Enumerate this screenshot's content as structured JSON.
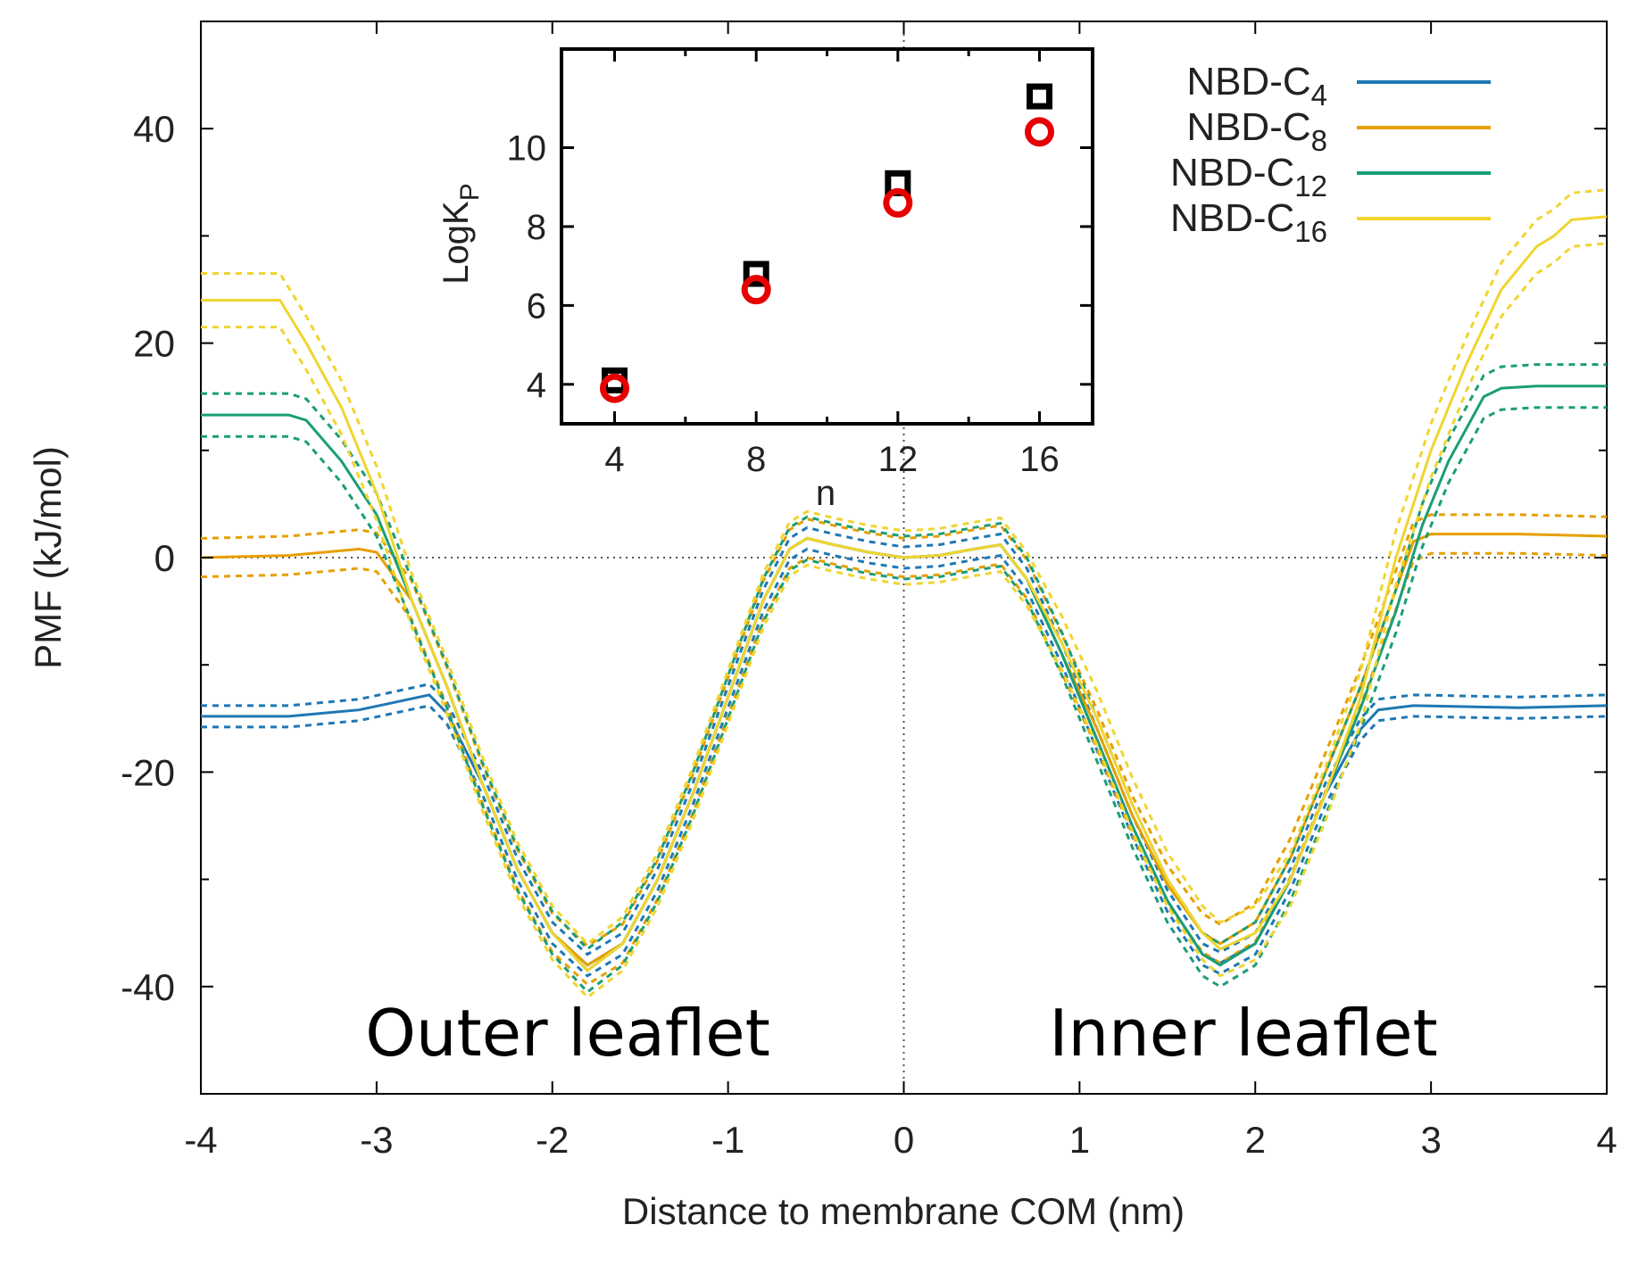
{
  "chart_data": [
    {
      "type": "line",
      "xlabel": "Distance to membrane COM (nm)",
      "ylabel": "PMF (kJ/mol)",
      "xlim": [
        -4,
        4
      ],
      "ylim": [
        -50,
        50
      ],
      "xticks": [
        -4,
        -3,
        -2,
        -1,
        0,
        1,
        2,
        3,
        4
      ],
      "yticks": [
        -40,
        -20,
        0,
        20,
        40
      ],
      "reference_lines": {
        "x": 0,
        "y": 0,
        "style": "dotted"
      },
      "annotations": [
        "Outer leaflet",
        "Inner leaflet"
      ],
      "legend": {
        "position": "top-right",
        "entries": [
          {
            "prefix": "NBD-C",
            "sub": "4"
          },
          {
            "prefix": "NBD-C",
            "sub": "8"
          },
          {
            "prefix": "NBD-C",
            "sub": "12"
          },
          {
            "prefix": "NBD-C",
            "sub": "16"
          }
        ]
      },
      "series": [
        {
          "name": "NBD-C4",
          "color": "#1f78b4",
          "error_band": 1.0,
          "points": [
            [
              -4,
              -14.8
            ],
            [
              -3.5,
              -14.8
            ],
            [
              -3.1,
              -14.2
            ],
            [
              -2.9,
              -13.5
            ],
            [
              -2.7,
              -12.8
            ],
            [
              -2.6,
              -14.5
            ],
            [
              -2.4,
              -21
            ],
            [
              -2.2,
              -29
            ],
            [
              -2,
              -35
            ],
            [
              -1.8,
              -38
            ],
            [
              -1.6,
              -36
            ],
            [
              -1.4,
              -30
            ],
            [
              -1.2,
              -22
            ],
            [
              -1,
              -13
            ],
            [
              -0.8,
              -4
            ],
            [
              -0.65,
              0.8
            ],
            [
              -0.55,
              1.8
            ],
            [
              -0.4,
              1.2
            ],
            [
              -0.2,
              0.5
            ],
            [
              0,
              0
            ],
            [
              0.2,
              0.2
            ],
            [
              0.4,
              0.8
            ],
            [
              0.55,
              1.2
            ],
            [
              0.7,
              -2
            ],
            [
              0.9,
              -9
            ],
            [
              1.1,
              -17
            ],
            [
              1.3,
              -25
            ],
            [
              1.5,
              -32
            ],
            [
              1.7,
              -37
            ],
            [
              1.8,
              -37.8
            ],
            [
              2,
              -36
            ],
            [
              2.2,
              -30
            ],
            [
              2.4,
              -22
            ],
            [
              2.6,
              -16
            ],
            [
              2.7,
              -14.2
            ],
            [
              2.9,
              -13.8
            ],
            [
              3.5,
              -14
            ],
            [
              4,
              -13.8
            ]
          ]
        },
        {
          "name": "NBD-C8",
          "color": "#e69f00",
          "error_band": 1.8,
          "points": [
            [
              -4,
              0
            ],
            [
              -3.5,
              0.2
            ],
            [
              -3.1,
              0.8
            ],
            [
              -3,
              0.5
            ],
            [
              -2.8,
              -4
            ],
            [
              -2.6,
              -12
            ],
            [
              -2.4,
              -21
            ],
            [
              -2.2,
              -29
            ],
            [
              -2,
              -35
            ],
            [
              -1.8,
              -38
            ],
            [
              -1.6,
              -36
            ],
            [
              -1.4,
              -30
            ],
            [
              -1.2,
              -22
            ],
            [
              -1,
              -13
            ],
            [
              -0.8,
              -4
            ],
            [
              -0.65,
              0.8
            ],
            [
              -0.55,
              1.8
            ],
            [
              -0.4,
              1.2
            ],
            [
              -0.2,
              0.5
            ],
            [
              0,
              0
            ],
            [
              0.2,
              0.2
            ],
            [
              0.4,
              0.8
            ],
            [
              0.55,
              1.2
            ],
            [
              0.7,
              -2
            ],
            [
              0.9,
              -9
            ],
            [
              1.1,
              -16
            ],
            [
              1.3,
              -24
            ],
            [
              1.5,
              -30.5
            ],
            [
              1.7,
              -35
            ],
            [
              1.8,
              -36
            ],
            [
              2,
              -34
            ],
            [
              2.2,
              -28
            ],
            [
              2.4,
              -20
            ],
            [
              2.6,
              -12
            ],
            [
              2.8,
              -3
            ],
            [
              2.9,
              1.5
            ],
            [
              3,
              2.2
            ],
            [
              3.5,
              2.2
            ],
            [
              4,
              2
            ]
          ]
        },
        {
          "name": "NBD-C12",
          "color": "#1a9e77",
          "error_band": 2.0,
          "points": [
            [
              -4,
              13.3
            ],
            [
              -3.5,
              13.3
            ],
            [
              -3.4,
              12.8
            ],
            [
              -3.2,
              9
            ],
            [
              -3,
              4
            ],
            [
              -2.8,
              -4
            ],
            [
              -2.6,
              -12
            ],
            [
              -2.4,
              -21
            ],
            [
              -2.2,
              -29
            ],
            [
              -2,
              -35
            ],
            [
              -1.8,
              -38.5
            ],
            [
              -1.6,
              -36
            ],
            [
              -1.4,
              -30
            ],
            [
              -1.2,
              -22
            ],
            [
              -1,
              -13
            ],
            [
              -0.8,
              -4
            ],
            [
              -0.65,
              0.8
            ],
            [
              -0.55,
              1.8
            ],
            [
              -0.4,
              1.2
            ],
            [
              -0.2,
              0.5
            ],
            [
              0,
              0
            ],
            [
              0.2,
              0.2
            ],
            [
              0.4,
              0.8
            ],
            [
              0.55,
              1.2
            ],
            [
              0.7,
              -2
            ],
            [
              0.9,
              -9
            ],
            [
              1.1,
              -17
            ],
            [
              1.3,
              -25
            ],
            [
              1.5,
              -32
            ],
            [
              1.7,
              -37
            ],
            [
              1.8,
              -38
            ],
            [
              2,
              -36
            ],
            [
              2.2,
              -30
            ],
            [
              2.4,
              -22
            ],
            [
              2.6,
              -14
            ],
            [
              2.8,
              -5
            ],
            [
              2.95,
              3
            ],
            [
              3.1,
              9
            ],
            [
              3.3,
              15
            ],
            [
              3.4,
              15.8
            ],
            [
              3.6,
              16
            ],
            [
              4,
              16
            ]
          ]
        },
        {
          "name": "NBD-C16",
          "color": "#f0d530",
          "error_band": 2.5,
          "points": [
            [
              -4,
              24
            ],
            [
              -3.55,
              24
            ],
            [
              -3.4,
              20
            ],
            [
              -3.2,
              14
            ],
            [
              -3,
              6
            ],
            [
              -2.8,
              -4
            ],
            [
              -2.6,
              -12
            ],
            [
              -2.4,
              -21
            ],
            [
              -2.2,
              -29
            ],
            [
              -2,
              -35
            ],
            [
              -1.8,
              -38.5
            ],
            [
              -1.6,
              -36
            ],
            [
              -1.4,
              -30
            ],
            [
              -1.2,
              -22
            ],
            [
              -1,
              -13
            ],
            [
              -0.8,
              -4
            ],
            [
              -0.65,
              0.8
            ],
            [
              -0.55,
              1.8
            ],
            [
              -0.4,
              1.2
            ],
            [
              -0.2,
              0.5
            ],
            [
              0,
              0
            ],
            [
              0.2,
              0.2
            ],
            [
              0.4,
              0.8
            ],
            [
              0.55,
              1.2
            ],
            [
              0.7,
              -2
            ],
            [
              0.9,
              -8
            ],
            [
              1.1,
              -15
            ],
            [
              1.3,
              -23
            ],
            [
              1.5,
              -30
            ],
            [
              1.7,
              -35
            ],
            [
              1.8,
              -36.5
            ],
            [
              2,
              -35
            ],
            [
              2.2,
              -30
            ],
            [
              2.4,
              -22
            ],
            [
              2.6,
              -13
            ],
            [
              2.8,
              0
            ],
            [
              3,
              10
            ],
            [
              3.2,
              18
            ],
            [
              3.4,
              25
            ],
            [
              3.6,
              29
            ],
            [
              3.7,
              30
            ],
            [
              3.8,
              31.5
            ],
            [
              4,
              31.8
            ]
          ]
        }
      ]
    },
    {
      "type": "scatter",
      "xlabel": "n",
      "ylabel_prefix": "LogK",
      "ylabel_sub": "P",
      "xlim": [
        2.5,
        17.5
      ],
      "ylim": [
        3,
        12.5
      ],
      "xticks": [
        4,
        8,
        12,
        16
      ],
      "yticks": [
        4,
        6,
        8,
        10
      ],
      "series": [
        {
          "name": "squares",
          "marker": "square",
          "color": "#000000",
          "x": [
            4,
            8,
            12,
            16
          ],
          "y": [
            4.1,
            6.8,
            9.1,
            11.3
          ]
        },
        {
          "name": "circles",
          "marker": "circle",
          "color": "#e60000",
          "x": [
            4,
            8,
            12,
            16
          ],
          "y": [
            3.9,
            6.4,
            8.6,
            10.4
          ]
        }
      ]
    }
  ]
}
